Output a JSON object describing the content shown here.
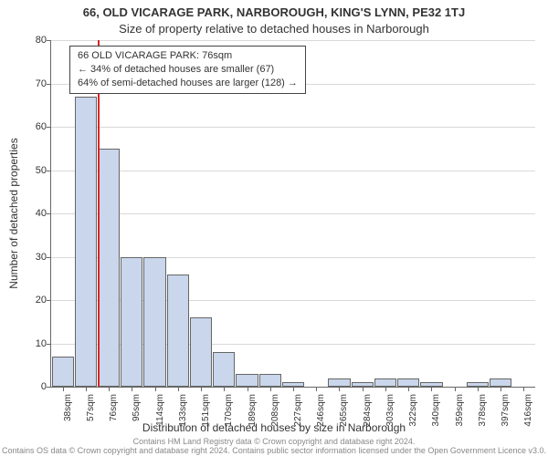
{
  "title_line1": "66, OLD VICARAGE PARK, NARBOROUGH, KING'S LYNN, PE32 1TJ",
  "title_line2": "Size of property relative to detached houses in Narborough",
  "y_axis_label": "Number of detached properties",
  "x_axis_label": "Distribution of detached houses by size in Narborough",
  "footer_line1": "Contains HM Land Registry data © Crown copyright and database right 2024.",
  "footer_line2": "Contains OS data © Crown copyright and database right 2024. Contains public sector information licensed under the Open Government Licence v3.0.",
  "annotation": {
    "line1": "66 OLD VICARAGE PARK: 76sqm",
    "line2": "← 34% of detached houses are smaller (67)",
    "line3": "64% of semi-detached houses are larger (128) →"
  },
  "chart": {
    "type": "histogram",
    "y_ticks": [
      0,
      10,
      20,
      30,
      40,
      50,
      60,
      70,
      80
    ],
    "y_max": 80,
    "bar_fill": "#c9d6eb",
    "bar_border": "#666666",
    "grid_color": "#d9d9d9",
    "axis_color": "#666666",
    "highlight_line_color": "#d62728",
    "highlight_at_category": "76sqm",
    "categories": [
      "38sqm",
      "57sqm",
      "76sqm",
      "95sqm",
      "114sqm",
      "133sqm",
      "151sqm",
      "170sqm",
      "189sqm",
      "208sqm",
      "227sqm",
      "246sqm",
      "265sqm",
      "284sqm",
      "303sqm",
      "322sqm",
      "340sqm",
      "359sqm",
      "378sqm",
      "397sqm",
      "416sqm"
    ],
    "values": [
      7,
      67,
      55,
      30,
      30,
      26,
      16,
      8,
      3,
      3,
      1,
      0,
      2,
      1,
      2,
      2,
      1,
      0,
      1,
      2,
      0
    ],
    "title_fontsize": 13,
    "label_fontsize": 12,
    "tick_fontsize": 11,
    "annotation_fontsize": 11,
    "footer_fontsize": 9,
    "background_color": "#ffffff"
  }
}
